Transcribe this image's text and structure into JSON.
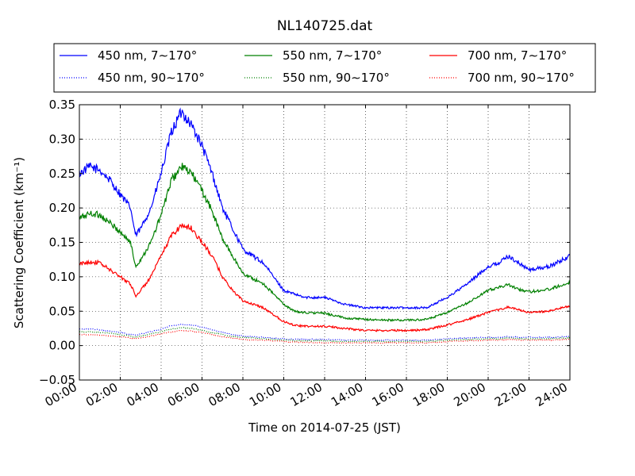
{
  "chart_data": {
    "type": "line",
    "title": "NL140725.dat",
    "xlabel": "Time on 2014-07-25 (JST)",
    "ylabel": "Scattering Coefficient (km⁻¹)",
    "xlim": [
      "00:00",
      "24:00"
    ],
    "ylim": [
      -0.05,
      0.35
    ],
    "x_ticks": [
      "00:00",
      "02:00",
      "04:00",
      "06:00",
      "08:00",
      "10:00",
      "12:00",
      "14:00",
      "16:00",
      "18:00",
      "20:00",
      "22:00",
      "24:00"
    ],
    "y_ticks": [
      "−0.05",
      "0.00",
      "0.05",
      "0.10",
      "0.15",
      "0.20",
      "0.25",
      "0.30",
      "0.35"
    ],
    "grid": true,
    "legend_position": "top",
    "x": [
      "00:00",
      "00:30",
      "01:00",
      "01:30",
      "02:00",
      "02:30",
      "02:45",
      "03:00",
      "03:30",
      "04:00",
      "04:30",
      "05:00",
      "05:30",
      "06:00",
      "06:30",
      "07:00",
      "07:30",
      "08:00",
      "08:30",
      "09:00",
      "09:30",
      "10:00",
      "10:30",
      "11:00",
      "12:00",
      "13:00",
      "14:00",
      "15:00",
      "16:00",
      "17:00",
      "18:00",
      "19:00",
      "20:00",
      "20:30",
      "21:00",
      "21:30",
      "22:00",
      "23:00",
      "24:00"
    ],
    "series": [
      {
        "name": "450 nm, 7∼170°",
        "color": "#0000ff",
        "style": "solid",
        "values": [
          0.25,
          0.26,
          0.255,
          0.24,
          0.22,
          0.2,
          0.16,
          0.17,
          0.2,
          0.25,
          0.31,
          0.34,
          0.32,
          0.29,
          0.25,
          0.2,
          0.17,
          0.14,
          0.13,
          0.12,
          0.1,
          0.08,
          0.075,
          0.07,
          0.07,
          0.06,
          0.055,
          0.055,
          0.055,
          0.055,
          0.07,
          0.09,
          0.115,
          0.12,
          0.13,
          0.12,
          0.11,
          0.115,
          0.13
        ]
      },
      {
        "name": "550 nm, 7∼170°",
        "color": "#008000",
        "style": "solid",
        "values": [
          0.185,
          0.192,
          0.19,
          0.178,
          0.165,
          0.15,
          0.115,
          0.125,
          0.15,
          0.19,
          0.24,
          0.26,
          0.25,
          0.225,
          0.195,
          0.155,
          0.13,
          0.105,
          0.097,
          0.09,
          0.075,
          0.06,
          0.05,
          0.048,
          0.047,
          0.04,
          0.038,
          0.037,
          0.037,
          0.038,
          0.048,
          0.062,
          0.08,
          0.085,
          0.088,
          0.082,
          0.078,
          0.082,
          0.092
        ]
      },
      {
        "name": "700 nm, 7∼170°",
        "color": "#ff0000",
        "style": "solid",
        "values": [
          0.118,
          0.122,
          0.12,
          0.11,
          0.1,
          0.09,
          0.072,
          0.08,
          0.1,
          0.13,
          0.16,
          0.175,
          0.17,
          0.15,
          0.13,
          0.1,
          0.08,
          0.065,
          0.06,
          0.055,
          0.045,
          0.035,
          0.03,
          0.028,
          0.028,
          0.025,
          0.022,
          0.022,
          0.022,
          0.023,
          0.03,
          0.038,
          0.048,
          0.052,
          0.056,
          0.052,
          0.048,
          0.05,
          0.058
        ]
      },
      {
        "name": "450 nm, 90∼170°",
        "color": "#0000ff",
        "style": "dotted",
        "values": [
          0.024,
          0.024,
          0.023,
          0.021,
          0.019,
          0.016,
          0.015,
          0.017,
          0.02,
          0.024,
          0.029,
          0.031,
          0.03,
          0.027,
          0.023,
          0.019,
          0.016,
          0.014,
          0.013,
          0.012,
          0.011,
          0.01,
          0.009,
          0.009,
          0.009,
          0.008,
          0.008,
          0.008,
          0.008,
          0.008,
          0.01,
          0.011,
          0.012,
          0.012,
          0.013,
          0.012,
          0.012,
          0.012,
          0.013
        ]
      },
      {
        "name": "550 nm, 90∼170°",
        "color": "#008000",
        "style": "dotted",
        "values": [
          0.02,
          0.02,
          0.019,
          0.018,
          0.016,
          0.014,
          0.012,
          0.014,
          0.017,
          0.02,
          0.024,
          0.026,
          0.025,
          0.022,
          0.019,
          0.016,
          0.013,
          0.012,
          0.011,
          0.01,
          0.009,
          0.008,
          0.007,
          0.007,
          0.007,
          0.006,
          0.006,
          0.006,
          0.006,
          0.006,
          0.008,
          0.009,
          0.01,
          0.01,
          0.011,
          0.01,
          0.01,
          0.01,
          0.011
        ]
      },
      {
        "name": "700 nm, 90∼170°",
        "color": "#ff0000",
        "style": "dotted",
        "values": [
          0.016,
          0.016,
          0.015,
          0.014,
          0.013,
          0.011,
          0.01,
          0.011,
          0.014,
          0.017,
          0.02,
          0.022,
          0.021,
          0.019,
          0.016,
          0.013,
          0.011,
          0.009,
          0.008,
          0.008,
          0.007,
          0.006,
          0.005,
          0.005,
          0.004,
          0.004,
          0.004,
          0.004,
          0.004,
          0.004,
          0.006,
          0.007,
          0.008,
          0.008,
          0.009,
          0.008,
          0.008,
          0.008,
          0.009
        ]
      }
    ]
  }
}
